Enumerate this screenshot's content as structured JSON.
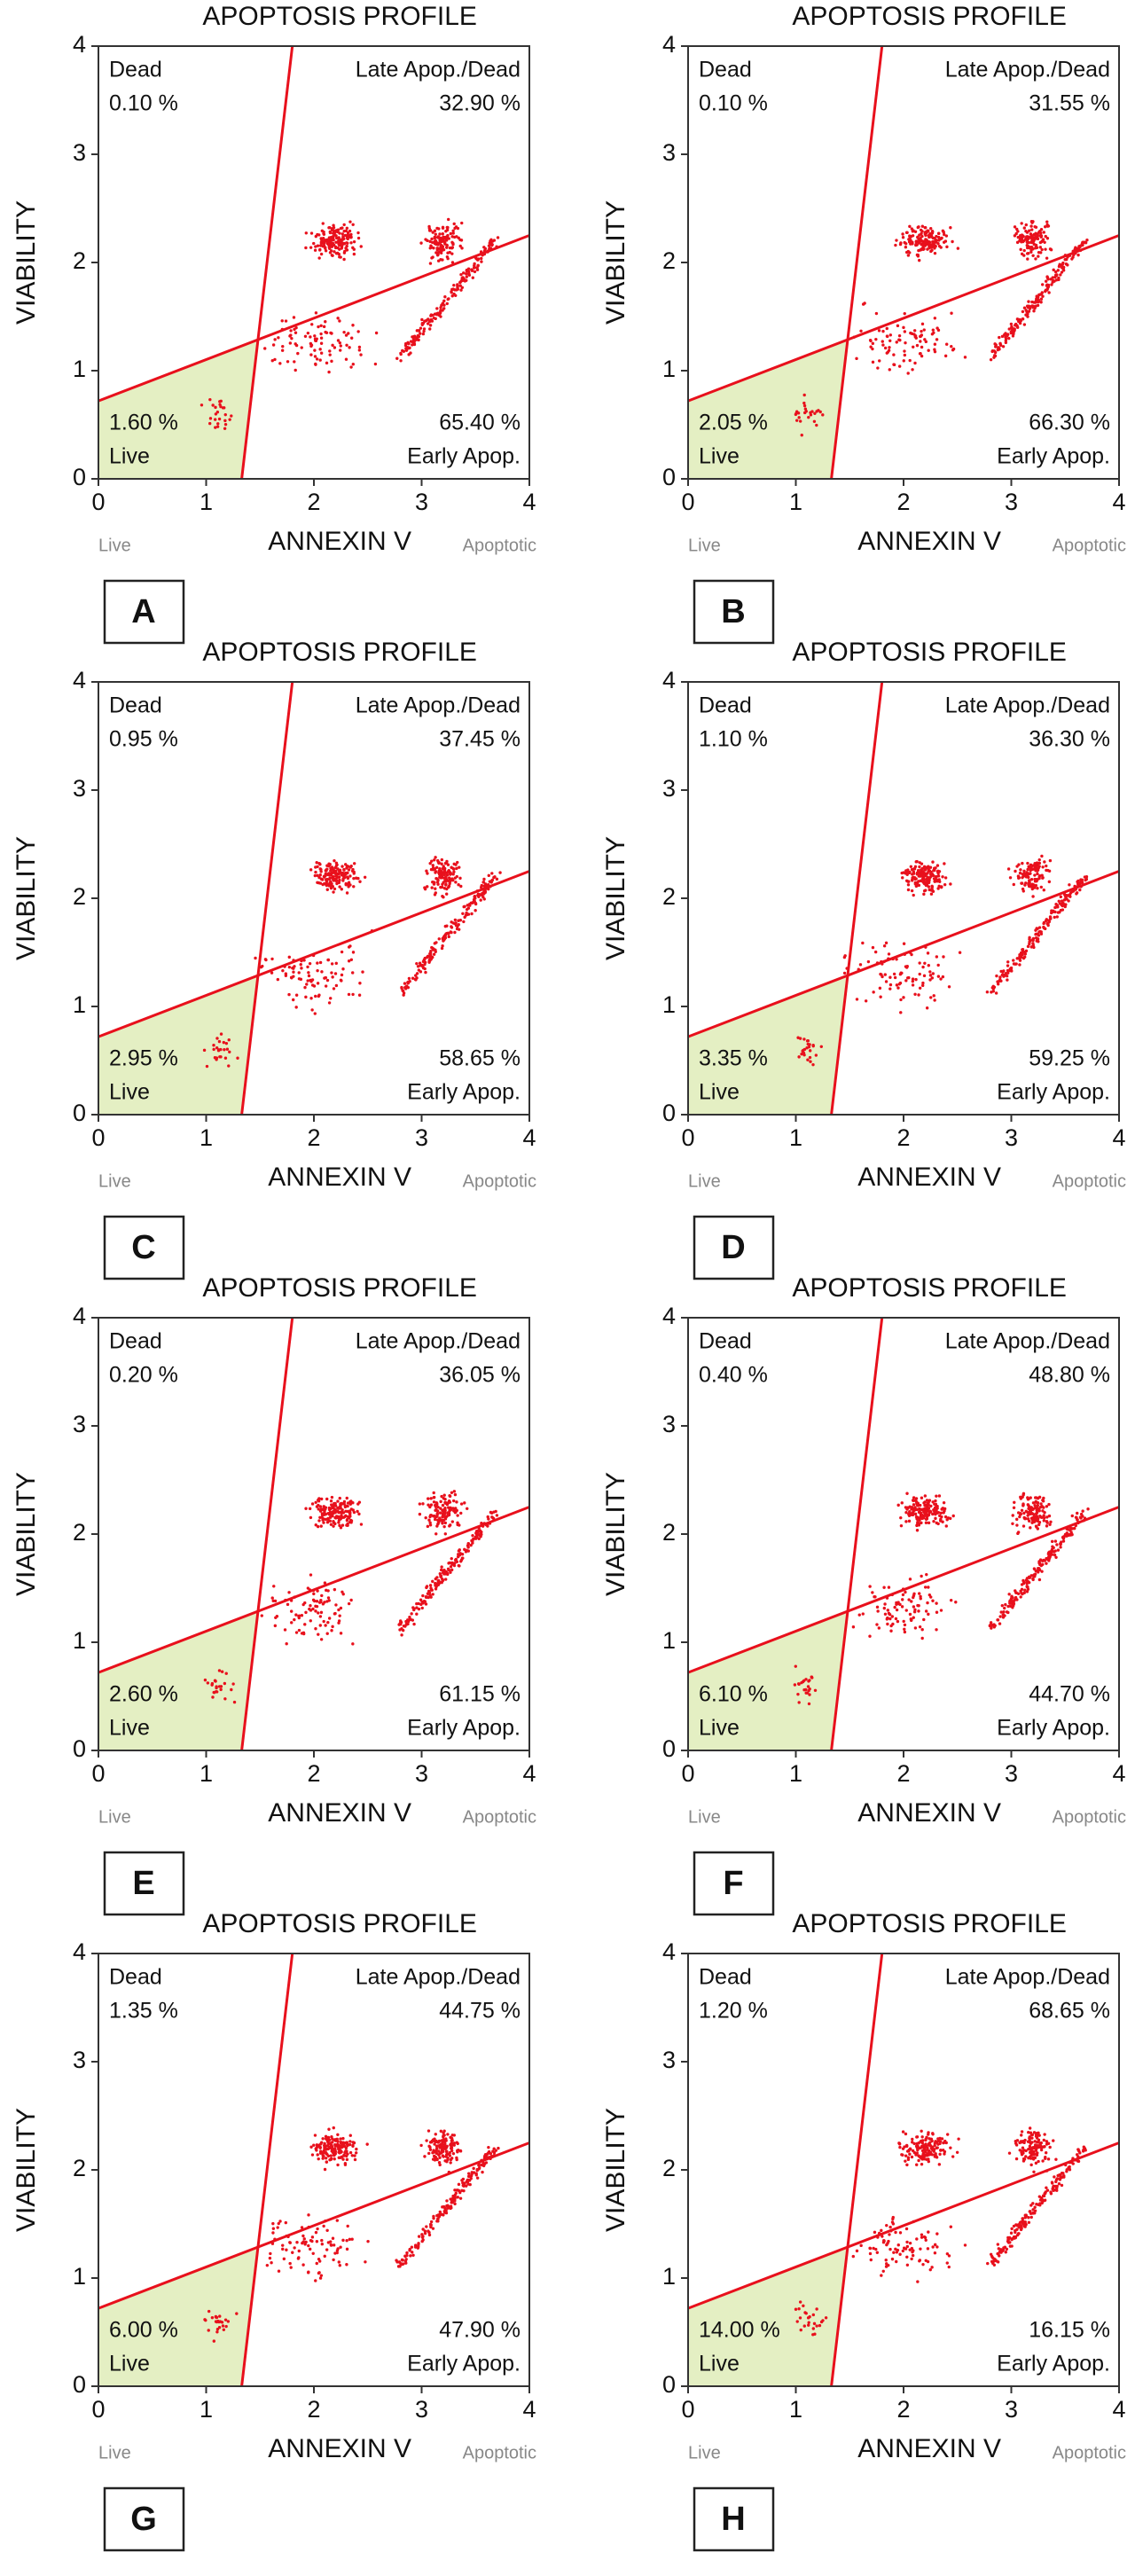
{
  "chart_data": [
    {
      "type": "quadrant",
      "title": "APOPTOSIS PROFILE",
      "x_label": "ANNEXIN V",
      "y_label": "VIABILITY",
      "x_left_note": "Live",
      "x_right_note": "Apoptotic",
      "panel": "A",
      "xlim": [
        0,
        4
      ],
      "ylim": [
        0,
        4
      ],
      "xticks": [
        0,
        1,
        2,
        3,
        4
      ],
      "yticks": [
        0,
        1,
        2,
        3,
        4
      ],
      "gate_lines": [
        {
          "x": [
            1.33,
            1.8
          ],
          "y": [
            0,
            4
          ]
        },
        {
          "x": [
            0,
            4
          ],
          "y": [
            0.72,
            2.25
          ]
        }
      ],
      "color": "#e8101c",
      "live_fill": "#e4efc3",
      "categories": [
        "Dead",
        "Late Apop./Dead",
        "Live",
        "Early Apop."
      ],
      "values": [
        0.1,
        32.9,
        1.6,
        65.4
      ],
      "value_labels": [
        "0.10 %",
        "32.90 %",
        "1.60 %",
        "65.40 %"
      ]
    },
    {
      "type": "quadrant",
      "title": "APOPTOSIS PROFILE",
      "x_label": "ANNEXIN V",
      "y_label": "VIABILITY",
      "x_left_note": "Live",
      "x_right_note": "Apoptotic",
      "panel": "B",
      "xlim": [
        0,
        4
      ],
      "ylim": [
        0,
        4
      ],
      "xticks": [
        0,
        1,
        2,
        3,
        4
      ],
      "yticks": [
        0,
        1,
        2,
        3,
        4
      ],
      "gate_lines": [
        {
          "x": [
            1.33,
            1.8
          ],
          "y": [
            0,
            4
          ]
        },
        {
          "x": [
            0,
            4
          ],
          "y": [
            0.72,
            2.25
          ]
        }
      ],
      "color": "#e8101c",
      "live_fill": "#e4efc3",
      "categories": [
        "Dead",
        "Late Apop./Dead",
        "Live",
        "Early Apop."
      ],
      "values": [
        0.1,
        31.55,
        2.05,
        66.3
      ],
      "value_labels": [
        "0.10 %",
        "31.55 %",
        "2.05 %",
        "66.30 %"
      ]
    },
    {
      "type": "quadrant",
      "title": "APOPTOSIS PROFILE",
      "x_label": "ANNEXIN V",
      "y_label": "VIABILITY",
      "x_left_note": "Live",
      "x_right_note": "Apoptotic",
      "panel": "C",
      "xlim": [
        0,
        4
      ],
      "ylim": [
        0,
        4
      ],
      "xticks": [
        0,
        1,
        2,
        3,
        4
      ],
      "yticks": [
        0,
        1,
        2,
        3,
        4
      ],
      "gate_lines": [
        {
          "x": [
            1.33,
            1.8
          ],
          "y": [
            0,
            4
          ]
        },
        {
          "x": [
            0,
            4
          ],
          "y": [
            0.72,
            2.25
          ]
        }
      ],
      "color": "#e8101c",
      "live_fill": "#e4efc3",
      "categories": [
        "Dead",
        "Late Apop./Dead",
        "Live",
        "Early Apop."
      ],
      "values": [
        0.95,
        37.45,
        2.95,
        58.65
      ],
      "value_labels": [
        "0.95 %",
        "37.45 %",
        "2.95 %",
        "58.65 %"
      ]
    },
    {
      "type": "quadrant",
      "title": "APOPTOSIS PROFILE",
      "x_label": "ANNEXIN V",
      "y_label": "VIABILITY",
      "x_left_note": "Live",
      "x_right_note": "Apoptotic",
      "panel": "D",
      "xlim": [
        0,
        4
      ],
      "ylim": [
        0,
        4
      ],
      "xticks": [
        0,
        1,
        2,
        3,
        4
      ],
      "yticks": [
        0,
        1,
        2,
        3,
        4
      ],
      "gate_lines": [
        {
          "x": [
            1.33,
            1.8
          ],
          "y": [
            0,
            4
          ]
        },
        {
          "x": [
            0,
            4
          ],
          "y": [
            0.72,
            2.25
          ]
        }
      ],
      "color": "#e8101c",
      "live_fill": "#e4efc3",
      "categories": [
        "Dead",
        "Late Apop./Dead",
        "Live",
        "Early Apop."
      ],
      "values": [
        1.1,
        36.3,
        3.35,
        59.25
      ],
      "value_labels": [
        "1.10 %",
        "36.30 %",
        "3.35 %",
        "59.25 %"
      ]
    },
    {
      "type": "quadrant",
      "title": "APOPTOSIS PROFILE",
      "x_label": "ANNEXIN V",
      "y_label": "VIABILITY",
      "x_left_note": "Live",
      "x_right_note": "Apoptotic",
      "panel": "E",
      "xlim": [
        0,
        4
      ],
      "ylim": [
        0,
        4
      ],
      "xticks": [
        0,
        1,
        2,
        3,
        4
      ],
      "yticks": [
        0,
        1,
        2,
        3,
        4
      ],
      "gate_lines": [
        {
          "x": [
            1.33,
            1.8
          ],
          "y": [
            0,
            4
          ]
        },
        {
          "x": [
            0,
            4
          ],
          "y": [
            0.72,
            2.25
          ]
        }
      ],
      "color": "#e8101c",
      "live_fill": "#e4efc3",
      "categories": [
        "Dead",
        "Late Apop./Dead",
        "Live",
        "Early Apop."
      ],
      "values": [
        0.2,
        36.05,
        2.6,
        61.15
      ],
      "value_labels": [
        "0.20 %",
        "36.05 %",
        "2.60 %",
        "61.15 %"
      ]
    },
    {
      "type": "quadrant",
      "title": "APOPTOSIS PROFILE",
      "x_label": "ANNEXIN V",
      "y_label": "VIABILITY",
      "x_left_note": "Live",
      "x_right_note": "Apoptotic",
      "panel": "F",
      "xlim": [
        0,
        4
      ],
      "ylim": [
        0,
        4
      ],
      "xticks": [
        0,
        1,
        2,
        3,
        4
      ],
      "yticks": [
        0,
        1,
        2,
        3,
        4
      ],
      "gate_lines": [
        {
          "x": [
            1.33,
            1.8
          ],
          "y": [
            0,
            4
          ]
        },
        {
          "x": [
            0,
            4
          ],
          "y": [
            0.72,
            2.25
          ]
        }
      ],
      "color": "#e8101c",
      "live_fill": "#e4efc3",
      "categories": [
        "Dead",
        "Late Apop./Dead",
        "Live",
        "Early Apop."
      ],
      "values": [
        0.4,
        48.8,
        6.1,
        44.7
      ],
      "value_labels": [
        "0.40 %",
        "48.80 %",
        "6.10 %",
        "44.70 %"
      ]
    },
    {
      "type": "quadrant",
      "title": "APOPTOSIS PROFILE",
      "x_label": "ANNEXIN V",
      "y_label": "VIABILITY",
      "x_left_note": "Live",
      "x_right_note": "Apoptotic",
      "panel": "G",
      "xlim": [
        0,
        4
      ],
      "ylim": [
        0,
        4
      ],
      "xticks": [
        0,
        1,
        2,
        3,
        4
      ],
      "yticks": [
        0,
        1,
        2,
        3,
        4
      ],
      "gate_lines": [
        {
          "x": [
            1.33,
            1.8
          ],
          "y": [
            0,
            4
          ]
        },
        {
          "x": [
            0,
            4
          ],
          "y": [
            0.72,
            2.25
          ]
        }
      ],
      "color": "#e8101c",
      "live_fill": "#e4efc3",
      "categories": [
        "Dead",
        "Late Apop./Dead",
        "Live",
        "Early Apop."
      ],
      "values": [
        1.35,
        44.75,
        6.0,
        47.9
      ],
      "value_labels": [
        "1.35 %",
        "44.75 %",
        "6.00 %",
        "47.90 %"
      ]
    },
    {
      "type": "quadrant",
      "title": "APOPTOSIS PROFILE",
      "x_label": "ANNEXIN V",
      "y_label": "VIABILITY",
      "x_left_note": "Live",
      "x_right_note": "Apoptotic",
      "panel": "H",
      "xlim": [
        0,
        4
      ],
      "ylim": [
        0,
        4
      ],
      "xticks": [
        0,
        1,
        2,
        3,
        4
      ],
      "yticks": [
        0,
        1,
        2,
        3,
        4
      ],
      "gate_lines": [
        {
          "x": [
            1.33,
            1.8
          ],
          "y": [
            0,
            4
          ]
        },
        {
          "x": [
            0,
            4
          ],
          "y": [
            0.72,
            2.25
          ]
        }
      ],
      "color": "#e8101c",
      "live_fill": "#e4efc3",
      "categories": [
        "Dead",
        "Late Apop./Dead",
        "Live",
        "Early Apop."
      ],
      "values": [
        1.2,
        68.65,
        14.0,
        16.15
      ],
      "value_labels": [
        "1.20 %",
        "68.65 %",
        "14.00 %",
        "16.15 %"
      ]
    }
  ]
}
